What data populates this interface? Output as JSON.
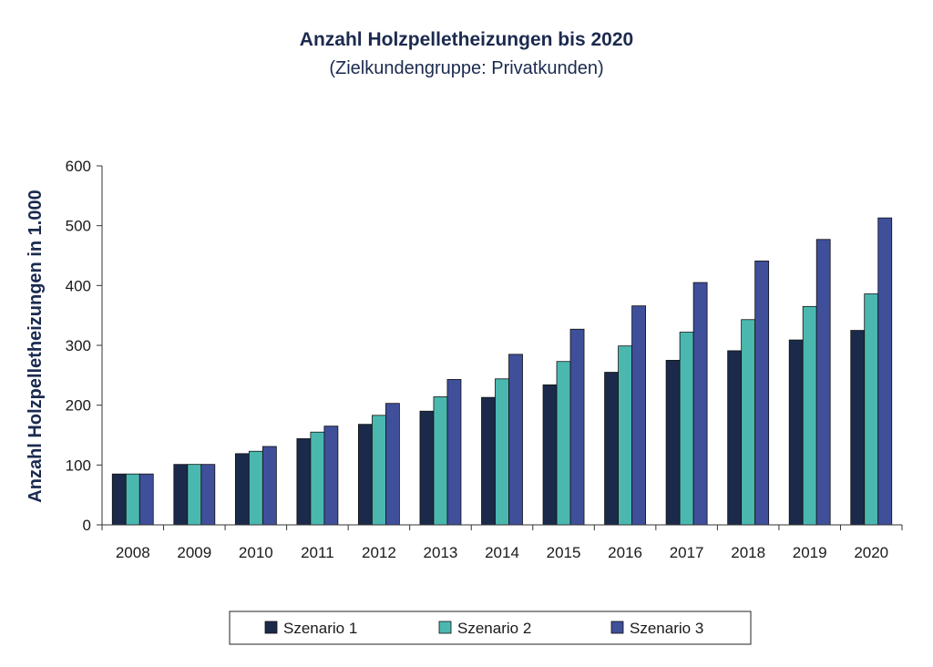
{
  "chart_data": {
    "type": "bar",
    "title": "Anzahl Holzpelletheizungen bis 2020",
    "subtitle": "(Zielkundengruppe: Privatkunden)",
    "xlabel": "",
    "ylabel": "Anzahl Holzpelletheizungen in 1.000",
    "ylim": [
      0,
      600
    ],
    "yticks": [
      "0",
      "100",
      "200",
      "300",
      "400",
      "500",
      "600"
    ],
    "grid": false,
    "legend_position": "bottom",
    "categories": [
      "2008",
      "2009",
      "2010",
      "2011",
      "2012",
      "2013",
      "2014",
      "2015",
      "2016",
      "2017",
      "2018",
      "2019",
      "2020"
    ],
    "series": [
      {
        "name": "Szenario 1",
        "color": "#1b2a4a",
        "values": [
          85,
          101,
          119,
          144,
          168,
          190,
          213,
          234,
          255,
          275,
          291,
          309,
          325
        ]
      },
      {
        "name": "Szenario 2",
        "color": "#4bb8b0",
        "values": [
          85,
          101,
          123,
          155,
          183,
          214,
          244,
          273,
          299,
          322,
          343,
          365,
          386
        ]
      },
      {
        "name": "Szenario 3",
        "color": "#3f4f9a",
        "values": [
          85,
          101,
          131,
          165,
          203,
          243,
          285,
          327,
          366,
          405,
          441,
          477,
          513
        ]
      }
    ]
  }
}
